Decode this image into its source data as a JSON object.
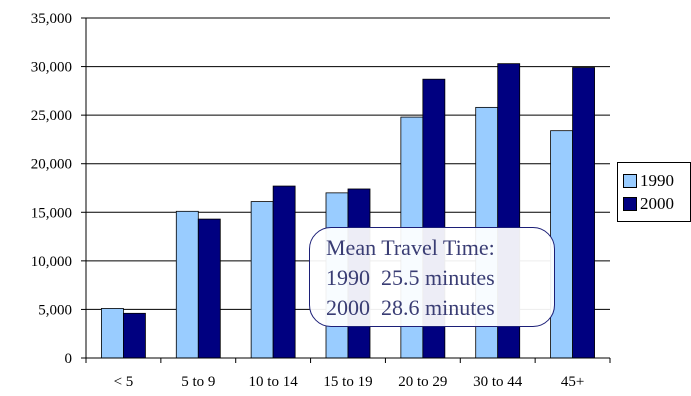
{
  "chart_data": {
    "type": "bar",
    "categories": [
      "< 5",
      "5 to 9",
      "10 to 14",
      "15 to 19",
      "20 to 29",
      "30 to 44",
      "45+"
    ],
    "series": [
      {
        "name": "1990",
        "color": "#99ccff",
        "values": [
          5100,
          15100,
          16100,
          17000,
          24800,
          25800,
          23400
        ]
      },
      {
        "name": "2000",
        "color": "#000080",
        "values": [
          4600,
          14300,
          17700,
          17400,
          28700,
          30300,
          29900
        ]
      }
    ],
    "ylim": [
      0,
      35000
    ],
    "yticks": [
      "0",
      "5,000",
      "10,000",
      "15,000",
      "20,000",
      "25,000",
      "30,000",
      "35,000"
    ],
    "grid": true,
    "legend_position": "right",
    "annotation": {
      "title": "Mean Travel Time:",
      "lines": [
        "1990  25.5 minutes",
        "2000  28.6 minutes"
      ]
    }
  }
}
